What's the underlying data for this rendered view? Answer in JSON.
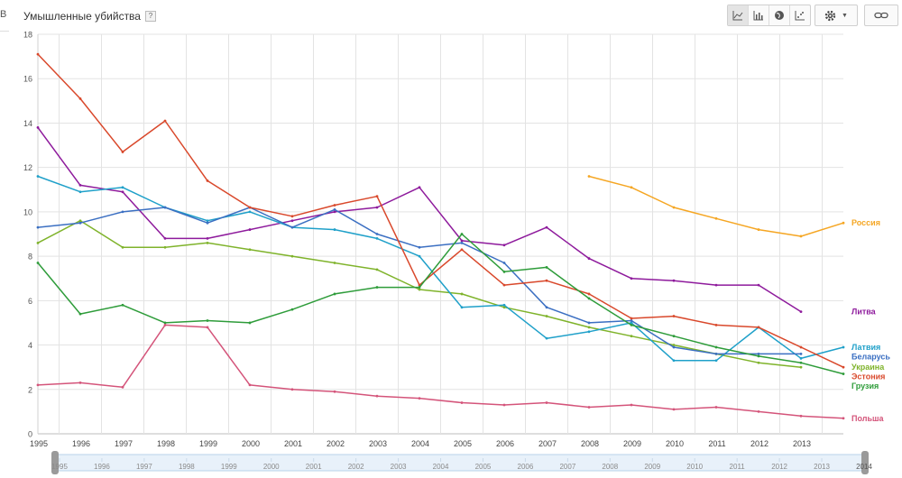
{
  "header": {
    "title": "Умышленные убийства",
    "help_label": "?"
  },
  "left_strip": {
    "glyph": "B"
  },
  "toolbar": {
    "chart_types": [
      {
        "icon": "line-chart-icon",
        "active": true
      },
      {
        "icon": "bar-chart-icon",
        "active": false
      },
      {
        "icon": "globe-map-icon",
        "active": false
      },
      {
        "icon": "scatter-chart-icon",
        "active": false
      }
    ],
    "settings_icon": "gear-icon",
    "link_icon": "link-icon"
  },
  "timeline": {
    "start_label": "1995",
    "end_label": "2014"
  },
  "chart_data": {
    "type": "line",
    "title": "Умышленные убийства",
    "x": [
      1995,
      1996,
      1997,
      1998,
      1999,
      2000,
      2001,
      2002,
      2003,
      2004,
      2005,
      2006,
      2007,
      2008,
      2009,
      2010,
      2011,
      2012,
      2013,
      2014
    ],
    "x_tick_labels": [
      "1995",
      "1996",
      "1997",
      "1998",
      "1999",
      "2000",
      "2001",
      "2002",
      "2003",
      "2004",
      "2005",
      "2006",
      "2007",
      "2008",
      "2009",
      "2010",
      "2011",
      "2012",
      "2013"
    ],
    "y_ticks": [
      0,
      2,
      4,
      6,
      8,
      10,
      12,
      14,
      16,
      18
    ],
    "ylim": [
      0,
      18
    ],
    "grid": true,
    "legend": "right, at line ends",
    "series": [
      {
        "name": "Россия",
        "color": "#f5a623",
        "values": [
          null,
          null,
          null,
          null,
          null,
          null,
          null,
          null,
          null,
          null,
          null,
          null,
          null,
          11.6,
          11.1,
          10.2,
          9.7,
          9.2,
          8.9,
          9.5
        ]
      },
      {
        "name": "Литва",
        "color": "#8e1a9c",
        "values": [
          13.8,
          11.2,
          10.9,
          8.8,
          8.8,
          9.2,
          9.6,
          10.0,
          10.2,
          11.1,
          8.7,
          8.5,
          9.3,
          7.9,
          7.0,
          6.9,
          6.7,
          6.7,
          5.5,
          null
        ]
      },
      {
        "name": "Украина",
        "color": "#7fb32b",
        "values": [
          8.6,
          9.6,
          8.4,
          8.4,
          8.6,
          8.3,
          8.0,
          7.7,
          7.4,
          6.5,
          6.3,
          5.7,
          5.3,
          4.8,
          4.4,
          4.0,
          3.6,
          3.2,
          3.0,
          null
        ]
      },
      {
        "name": "Латвия",
        "color": "#1fa0c9",
        "values": [
          11.6,
          10.9,
          11.1,
          10.2,
          9.6,
          10.0,
          9.3,
          9.2,
          8.8,
          8.0,
          5.7,
          5.8,
          4.3,
          4.6,
          5.0,
          3.3,
          3.3,
          4.8,
          3.4,
          3.9
        ]
      },
      {
        "name": "Беларусь",
        "color": "#3b6fc2",
        "values": [
          9.3,
          9.5,
          10.0,
          10.2,
          9.5,
          10.2,
          9.3,
          10.1,
          9.0,
          8.4,
          8.6,
          7.7,
          5.7,
          5.0,
          5.1,
          3.9,
          3.6,
          3.6,
          3.6,
          null
        ]
      },
      {
        "name": "Эстония",
        "color": "#d9482b",
        "values": [
          17.1,
          15.1,
          12.7,
          14.1,
          11.4,
          10.2,
          9.8,
          10.3,
          10.7,
          6.7,
          8.3,
          6.7,
          6.9,
          6.3,
          5.2,
          5.3,
          4.9,
          4.8,
          3.9,
          3.0
        ]
      },
      {
        "name": "Грузия",
        "color": "#2e9c3a",
        "values": [
          7.7,
          5.4,
          5.8,
          5.0,
          5.1,
          5.0,
          5.6,
          6.3,
          6.6,
          6.6,
          9.0,
          7.3,
          7.5,
          6.1,
          4.9,
          4.4,
          3.9,
          3.5,
          3.2,
          2.7
        ]
      },
      {
        "name": "Польша",
        "color": "#d4547a",
        "values": [
          2.2,
          2.3,
          2.1,
          4.9,
          4.8,
          2.2,
          2.0,
          1.9,
          1.7,
          1.6,
          1.4,
          1.3,
          1.4,
          1.2,
          1.3,
          1.1,
          1.2,
          1.0,
          0.8,
          0.7
        ]
      }
    ]
  }
}
